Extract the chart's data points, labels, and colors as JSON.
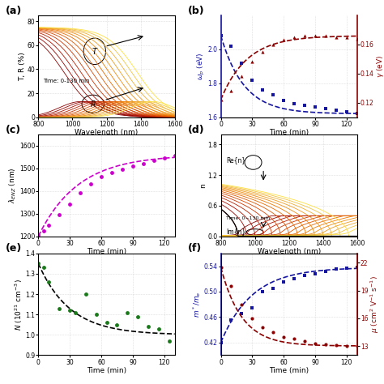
{
  "panel_a": {
    "n_curves": 14,
    "xlabel": "Wavelength (nm)",
    "ylabel": "T, R (%)",
    "ylim": [
      0,
      85
    ],
    "xlim": [
      800,
      1600
    ],
    "xticks": [
      800,
      1000,
      1200,
      1400,
      1600
    ],
    "yticks": [
      0,
      20,
      40,
      60,
      80
    ]
  },
  "panel_b": {
    "time_x": [
      0,
      10,
      20,
      30,
      40,
      50,
      60,
      70,
      80,
      90,
      100,
      110,
      120,
      130
    ],
    "wp_y": [
      2.08,
      2.02,
      1.92,
      1.82,
      1.76,
      1.73,
      1.7,
      1.68,
      1.67,
      1.66,
      1.65,
      1.64,
      1.63,
      1.62
    ],
    "gamma_y": [
      0.122,
      0.128,
      0.138,
      0.148,
      0.155,
      0.16,
      0.163,
      0.165,
      0.166,
      0.166,
      0.166,
      0.165,
      0.165,
      0.164
    ],
    "xlabel": "Time (min)",
    "ylabel_left": "$\\omega_p$ (eV)",
    "ylabel_right": "$\\gamma$ (eV)",
    "ylim_left": [
      1.6,
      2.2
    ],
    "ylim_right": [
      0.11,
      0.18
    ],
    "xlim": [
      0,
      130
    ],
    "xticks": [
      0,
      30,
      60,
      90,
      120
    ],
    "yticks_left": [
      1.6,
      1.8,
      2.0
    ],
    "yticks_right": [
      0.12,
      0.14,
      0.16
    ]
  },
  "panel_c": {
    "time_x": [
      0,
      5,
      10,
      20,
      30,
      40,
      50,
      60,
      70,
      80,
      90,
      100,
      110,
      120,
      130
    ],
    "lambda_y": [
      1205,
      1225,
      1250,
      1295,
      1340,
      1390,
      1430,
      1465,
      1480,
      1495,
      1510,
      1520,
      1535,
      1545,
      1555
    ],
    "xlabel": "Time (min)",
    "ylabel": "$\\lambda_{ENZ}$ (nm)",
    "ylim": [
      1200,
      1650
    ],
    "xlim": [
      0,
      130
    ],
    "xticks": [
      0,
      30,
      60,
      90,
      120
    ],
    "yticks": [
      1200,
      1300,
      1400,
      1500,
      1600
    ]
  },
  "panel_d": {
    "n_curves": 14,
    "xlabel": "Wavelength (nm)",
    "ylabel": "n",
    "ylim": [
      0,
      2.0
    ],
    "xlim": [
      800,
      1600
    ],
    "xticks": [
      800,
      1000,
      1200,
      1400,
      1600
    ],
    "yticks": [
      0.0,
      0.6,
      1.2,
      1.8
    ]
  },
  "panel_e": {
    "time_x": [
      0,
      5,
      10,
      20,
      30,
      35,
      45,
      55,
      65,
      75,
      85,
      95,
      105,
      115,
      125
    ],
    "N_y": [
      1.35,
      1.33,
      1.26,
      1.13,
      1.12,
      1.11,
      1.2,
      1.1,
      1.06,
      1.05,
      1.11,
      1.09,
      1.04,
      1.03,
      0.97
    ],
    "xlabel": "Time (min)",
    "ylabel": "$N$ (10$^{21}$ cm$^{-3}$)",
    "ylim": [
      0.9,
      1.4
    ],
    "xlim": [
      0,
      130
    ],
    "xticks": [
      0,
      30,
      60,
      90,
      120
    ],
    "yticks": [
      0.9,
      1.0,
      1.1,
      1.2,
      1.3,
      1.4
    ]
  },
  "panel_f": {
    "time_x": [
      0,
      10,
      20,
      30,
      40,
      50,
      60,
      70,
      80,
      90,
      100,
      110,
      120,
      130
    ],
    "mstar_y": [
      0.42,
      0.455,
      0.465,
      0.475,
      0.5,
      0.505,
      0.515,
      0.52,
      0.525,
      0.528,
      0.532,
      0.535,
      0.537,
      0.538
    ],
    "mu_y": [
      21.5,
      19.5,
      17.5,
      16.0,
      15.0,
      14.5,
      14.0,
      13.8,
      13.5,
      13.3,
      13.2,
      13.1,
      13.0,
      13.0
    ],
    "xlabel": "Time (min)",
    "ylabel_left": "$m^*/m_e$",
    "ylabel_right": "$\\mu$ (cm$^2$ V$^{-1}$ s$^{-1}$)",
    "ylim_left": [
      0.4,
      0.56
    ],
    "ylim_right": [
      12,
      23
    ],
    "xlim": [
      0,
      130
    ],
    "xticks": [
      0,
      30,
      60,
      90,
      120
    ],
    "yticks_left": [
      0.42,
      0.46,
      0.5,
      0.54
    ],
    "yticks_right": [
      13,
      16,
      19,
      22
    ]
  },
  "colors": {
    "hot_colors": [
      "#8B0000",
      "#9B0500",
      "#AB1000",
      "#BC2000",
      "#CC3500",
      "#D84800",
      "#E05800",
      "#E86A00",
      "#EF7B00",
      "#F08C10",
      "#F09D20",
      "#F0AF35",
      "#F0C545",
      "#FFE040"
    ],
    "blue": "#1515A0",
    "dark_red": "#8B0000",
    "magenta": "#CC00CC",
    "green": "#1A7A1A"
  }
}
